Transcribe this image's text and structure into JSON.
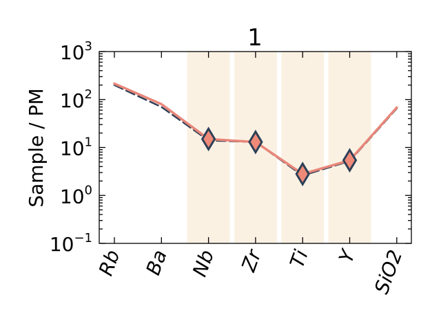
{
  "chart_data": {
    "type": "line",
    "title": "1",
    "xlabel": "",
    "ylabel": "Sample / PM",
    "yscale": "log",
    "ylim": [
      0.1,
      1000
    ],
    "grid": false,
    "categories": [
      "Rb",
      "Ba",
      "Nb",
      "Zr",
      "Ti",
      "Y",
      "SiO2"
    ],
    "y_ticks": [
      {
        "value": 0.1,
        "base": "10",
        "exp": "−1"
      },
      {
        "value": 1,
        "base": "10",
        "exp": "0"
      },
      {
        "value": 10,
        "base": "10",
        "exp": "1"
      },
      {
        "value": 100,
        "base": "10",
        "exp": "2"
      },
      {
        "value": 1000,
        "base": "10",
        "exp": "3"
      }
    ],
    "highlight_categories": [
      "Nb",
      "Zr",
      "Ti",
      "Y"
    ],
    "series": [
      {
        "style": "dashed",
        "color": "#2e4057",
        "values": [
          200,
          70,
          14,
          13,
          2.6,
          5.2,
          65
        ]
      },
      {
        "style": "solid",
        "color": "#e8877a",
        "values": [
          215,
          80,
          15,
          13,
          2.8,
          5.4,
          68
        ]
      }
    ],
    "markers": {
      "shape": "diamond",
      "fill": "#ef8a78",
      "stroke": "#2e4057",
      "categories": [
        "Nb",
        "Zr",
        "Ti",
        "Y"
      ],
      "values": [
        15,
        13,
        2.8,
        5.4
      ]
    },
    "colors": {
      "highlight_band": "#fbf1e3"
    }
  }
}
